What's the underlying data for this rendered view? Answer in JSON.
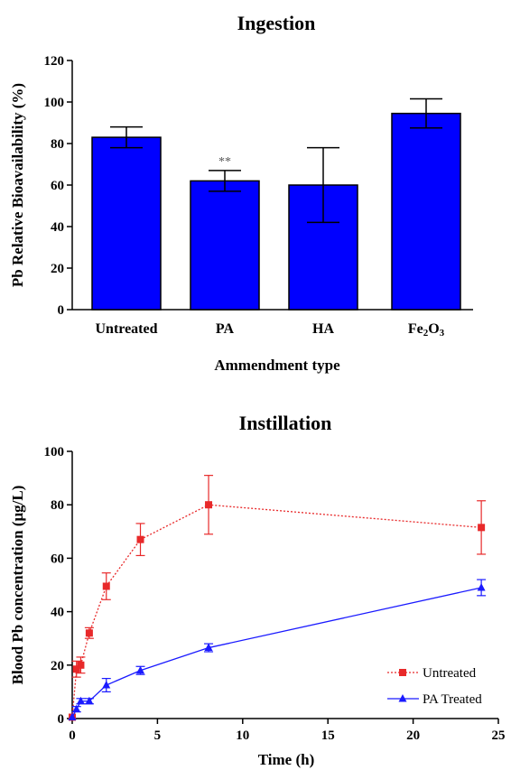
{
  "chart_data": [
    {
      "type": "bar",
      "title": "Ingestion",
      "xlabel": "Ammendment type",
      "ylabel": "Pb Relative Bioavailability (%)",
      "ylim": [
        0,
        120
      ],
      "yticks": [
        "0",
        "20",
        "40",
        "60",
        "80",
        "100",
        "120"
      ],
      "categories": [
        "Untreated",
        "PA",
        "HA",
        "Fe2O3"
      ],
      "category_labels": [
        {
          "text": "Untreated"
        },
        {
          "text": "PA"
        },
        {
          "text": "HA"
        },
        {
          "text": "Fe",
          "sub1": "2",
          "mid": "O",
          "sub2": "3"
        }
      ],
      "values": [
        83,
        62,
        60,
        94.5
      ],
      "errors": [
        5,
        5,
        18,
        7
      ],
      "annotations": [
        {
          "category": "PA",
          "text": "**"
        }
      ],
      "bar_color": "#0000ff",
      "grid": false
    },
    {
      "type": "line",
      "title": "Instillation",
      "xlabel": "Time (h)",
      "ylabel": "Blood Pb concentration (μg/L)",
      "xlim": [
        0,
        25
      ],
      "ylim": [
        0,
        100
      ],
      "xticks": [
        "0",
        "5",
        "10",
        "15",
        "20",
        "25"
      ],
      "yticks": [
        "0",
        "20",
        "40",
        "60",
        "80",
        "100"
      ],
      "legend_position": "bottom-right",
      "grid": false,
      "series": [
        {
          "name": "Untreated",
          "color": "#e8292a",
          "marker": "square",
          "line_style": "dotted",
          "x": [
            0,
            0.25,
            0.5,
            1,
            2,
            4,
            8,
            24
          ],
          "y": [
            0.5,
            18.5,
            20,
            32,
            49.5,
            67,
            80,
            71.5
          ],
          "err": [
            0,
            3,
            3,
            2,
            5,
            6,
            11,
            10
          ]
        },
        {
          "name": "PA Treated",
          "color": "#1a1aff",
          "marker": "triangle",
          "line_style": "solid",
          "x": [
            0,
            0.25,
            0.5,
            1,
            2,
            4,
            8,
            24
          ],
          "y": [
            0.5,
            3.5,
            6.5,
            6.5,
            12.5,
            18,
            26.5,
            49
          ],
          "err": [
            0,
            1,
            1,
            1,
            2.5,
            1.5,
            1.5,
            3
          ]
        }
      ]
    }
  ]
}
